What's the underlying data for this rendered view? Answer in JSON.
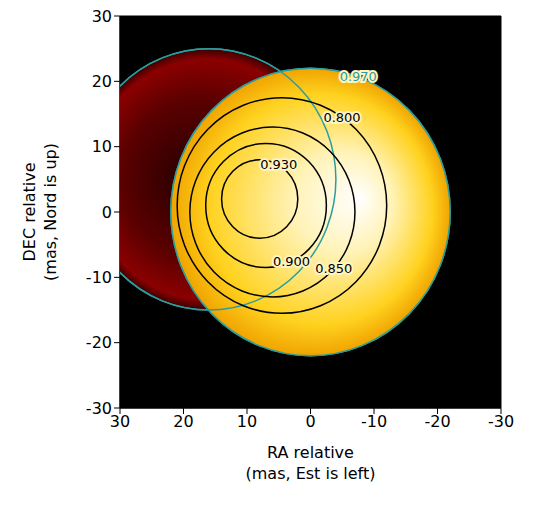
{
  "chart_data": {
    "type": "contour",
    "xlabel": "RA relative\n(mas, Est is left)",
    "ylabel": "DEC relative\n(mas, Nord is up)",
    "xlim": [
      30,
      -30
    ],
    "ylim": [
      -30,
      30
    ],
    "xticks": [
      30,
      20,
      10,
      0,
      -10,
      -20,
      -30
    ],
    "yticks": [
      -30,
      -20,
      -10,
      0,
      10,
      20,
      30
    ],
    "stars": [
      {
        "center": [
          16,
          5
        ],
        "radius": 20,
        "color": "#8b0000"
      },
      {
        "center": [
          0,
          0
        ],
        "radius": 22,
        "color": "#ffd21f"
      }
    ],
    "contours": [
      {
        "value": 0.97,
        "label": "0.970",
        "color": "#2a9d9d",
        "circles": [
          {
            "center": [
              16,
              5
            ],
            "radius": 20
          },
          {
            "center": [
              0,
              0
            ],
            "radius": 22
          }
        ]
      },
      {
        "value": 0.93,
        "label": "0.930",
        "color": "#000000",
        "circles": [
          {
            "center": [
              8,
              2
            ],
            "radius": 6
          }
        ]
      },
      {
        "value": 0.9,
        "label": "0.900",
        "color": "#000000",
        "circles": [
          {
            "center": [
              7,
              1
            ],
            "radius": 9.5
          }
        ]
      },
      {
        "value": 0.85,
        "label": "0.850",
        "color": "#000000",
        "circles": [
          {
            "center": [
              6,
              0
            ],
            "radius": 13
          }
        ]
      },
      {
        "value": 0.8,
        "label": "0.800",
        "color": "#000000",
        "circles": [
          {
            "center": [
              4.5,
              1
            ],
            "radius": 16.5
          }
        ]
      }
    ]
  }
}
